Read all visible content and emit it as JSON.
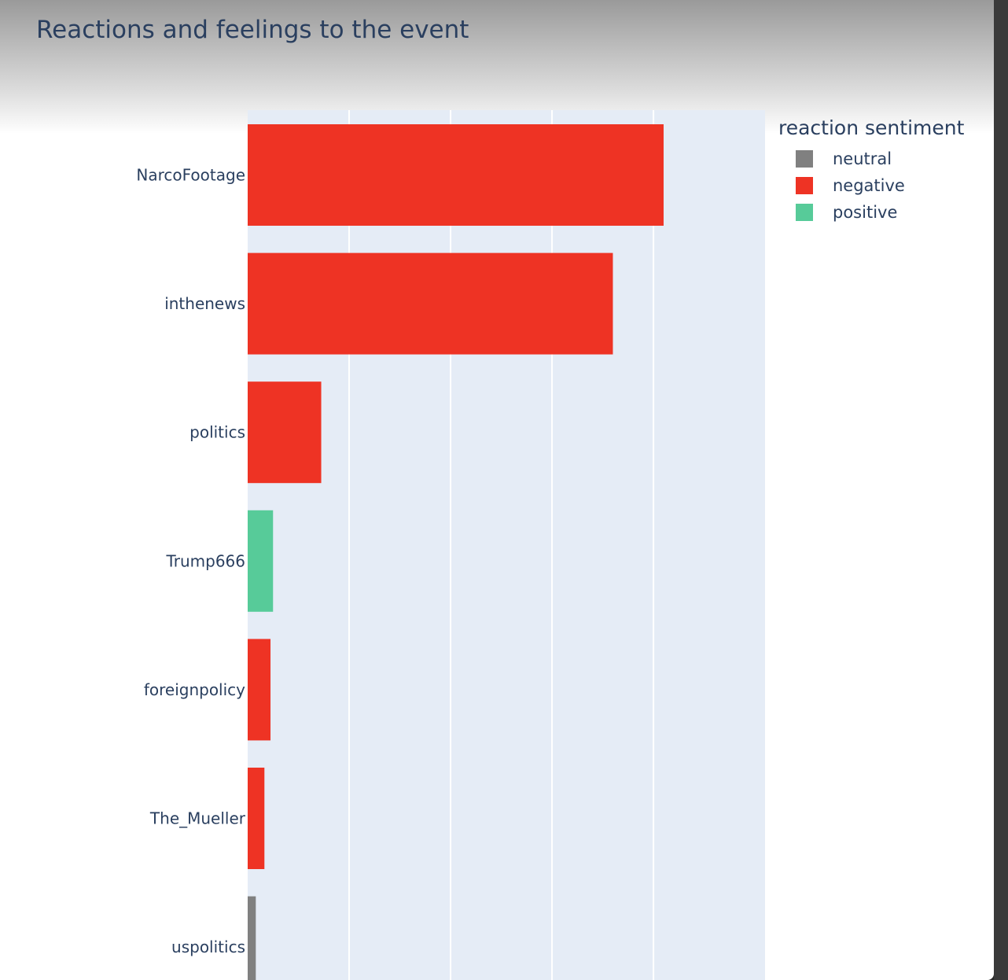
{
  "chart_data": {
    "type": "bar",
    "orientation": "horizontal",
    "title": "Reactions and feelings to the event",
    "xlabel": "",
    "ylabel": "",
    "xlim": [
      0,
      102
    ],
    "grid": true,
    "gridlines_x": [
      20,
      40,
      60,
      80
    ],
    "categories": [
      "NarcoFootage",
      "inthenews",
      "politics",
      "Trump666",
      "foreignpolicy",
      "The_Mueller",
      "uspolitics"
    ],
    "values": [
      82,
      72,
      14.5,
      5,
      4.5,
      3.3,
      1.6
    ],
    "sentiment": [
      "negative",
      "negative",
      "negative",
      "positive",
      "negative",
      "negative",
      "neutral"
    ],
    "legend": {
      "title": "reaction sentiment",
      "placement": "top-right",
      "entries": [
        {
          "name": "neutral",
          "color": "#808080"
        },
        {
          "name": "negative",
          "color": "#ee3324"
        },
        {
          "name": "positive",
          "color": "#57cb99"
        }
      ]
    }
  }
}
